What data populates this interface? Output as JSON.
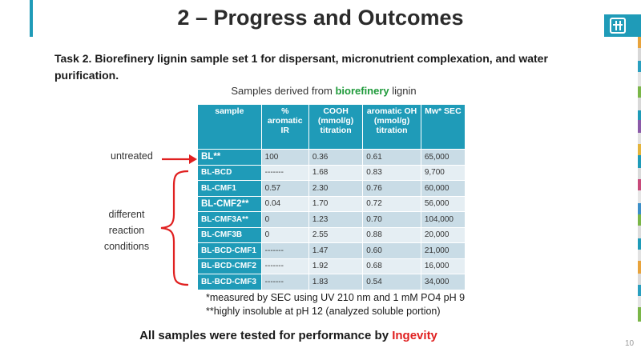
{
  "slide": {
    "title": "2 – Progress and Outcomes",
    "task": "Task 2. Biorefinery lignin sample set 1 for dispersant, micronutrient complexation, and water purification.",
    "subtitle_prefix": "Samples derived from ",
    "subtitle_highlight": "biorefinery",
    "subtitle_suffix": " lignin",
    "page_number": "10",
    "colors": {
      "accent": "#1f9bb8",
      "green": "#1e9a3a",
      "red": "#e02020"
    }
  },
  "labels": {
    "untreated": "untreated",
    "different": "different reaction conditions"
  },
  "table": {
    "headers": [
      "sample",
      "% aromatic IR",
      "COOH (mmol/g) titration",
      "aromatic OH (mmol/g) titration",
      "Mw* SEC"
    ],
    "rows": [
      [
        "BL**",
        "100",
        "0.36",
        "0.61",
        "65,000"
      ],
      [
        "BL-BCD",
        "-------",
        "1.68",
        "0.83",
        "9,700"
      ],
      [
        "BL-CMF1",
        "0.57",
        "2.30",
        "0.76",
        "60,000"
      ],
      [
        "BL-CMF2**",
        "0.04",
        "1.70",
        "0.72",
        "56,000"
      ],
      [
        "BL-CMF3A**",
        "0",
        "1.23",
        "0.70",
        "104,000"
      ],
      [
        "BL-CMF3B",
        "0",
        "2.55",
        "0.88",
        "20,000"
      ],
      [
        "BL-BCD-CMF1",
        "-------",
        "1.47",
        "0.60",
        "21,000"
      ],
      [
        "BL-BCD-CMF2",
        "-------",
        "1.92",
        "0.68",
        "16,000"
      ],
      [
        "BL-BCD-CMF3",
        "-------",
        "1.83",
        "0.54",
        "34,000"
      ]
    ]
  },
  "notes": {
    "n1": "*measured by SEC using UV 210 nm and 1 mM PO4 pH 9",
    "n2": "**highly insoluble at pH 12  (analyzed soluble portion)"
  },
  "footer": {
    "prefix": "All samples were tested for performance by ",
    "highlight": "Ingevity"
  }
}
